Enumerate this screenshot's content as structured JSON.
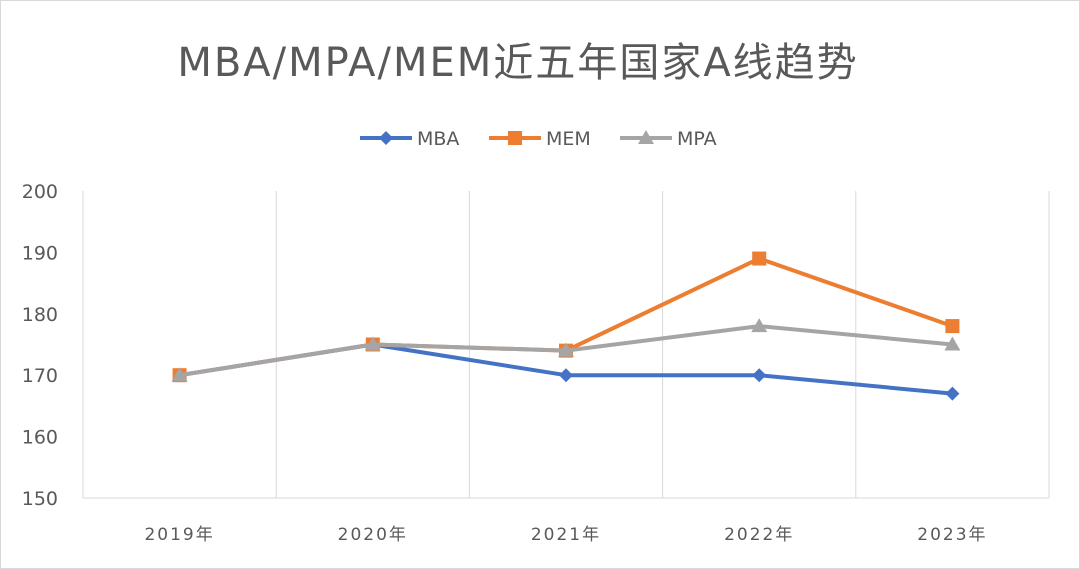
{
  "chart_data": {
    "type": "line",
    "title": "MBA/MPA/MEM近五年国家A线趋势",
    "categories": [
      "2019年",
      "2020年",
      "2021年",
      "2022年",
      "2023年"
    ],
    "series": [
      {
        "name": "MBA",
        "color": "#4472c4",
        "marker": "diamond",
        "values": [
          170,
          175,
          170,
          170,
          167
        ]
      },
      {
        "name": "MEM",
        "color": "#ed7d31",
        "marker": "square",
        "values": [
          170,
          175,
          174,
          189,
          178
        ]
      },
      {
        "name": "MPA",
        "color": "#a5a5a5",
        "marker": "triangle",
        "values": [
          170,
          175,
          174,
          178,
          175
        ]
      }
    ],
    "xlabel": "",
    "ylabel": "",
    "ylim": [
      150,
      200
    ],
    "yticks": [
      150,
      160,
      170,
      180,
      190,
      200
    ],
    "grid": "vertical",
    "legend": "top-center"
  }
}
